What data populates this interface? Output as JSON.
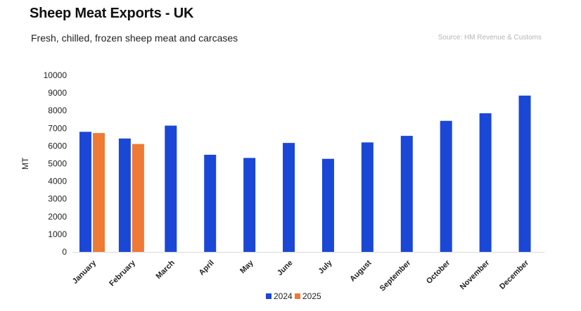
{
  "header": {
    "title": "Sheep Meat Exports - UK",
    "subtitle": "Fresh, chilled, frozen sheep meat and carcases",
    "source": "Source: HM Revenue & Customs"
  },
  "colors": {
    "series_2024": "#1a47d6",
    "series_2025": "#ee7a36",
    "baseline": "#d9d9d9"
  },
  "chart_data": {
    "type": "bar",
    "title": "Sheep Meat Exports - UK",
    "subtitle": "Fresh, chilled, frozen sheep meat and carcases",
    "xlabel": "",
    "ylabel": "MT",
    "ylim": [
      0,
      10000
    ],
    "yticks": [
      0,
      1000,
      2000,
      3000,
      4000,
      5000,
      6000,
      7000,
      8000,
      9000,
      10000
    ],
    "grid": false,
    "legend_position": "bottom",
    "categories": [
      "January",
      "February",
      "March",
      "April",
      "May",
      "June",
      "July",
      "August",
      "September",
      "October",
      "November",
      "December"
    ],
    "series": [
      {
        "name": "2024",
        "color": "#1a47d6",
        "values": [
          6800,
          6420,
          7150,
          5500,
          5320,
          6170,
          5270,
          6200,
          6570,
          7420,
          7850,
          8850
        ]
      },
      {
        "name": "2025",
        "color": "#ee7a36",
        "values": [
          6730,
          6110,
          null,
          null,
          null,
          null,
          null,
          null,
          null,
          null,
          null,
          null
        ]
      }
    ]
  }
}
